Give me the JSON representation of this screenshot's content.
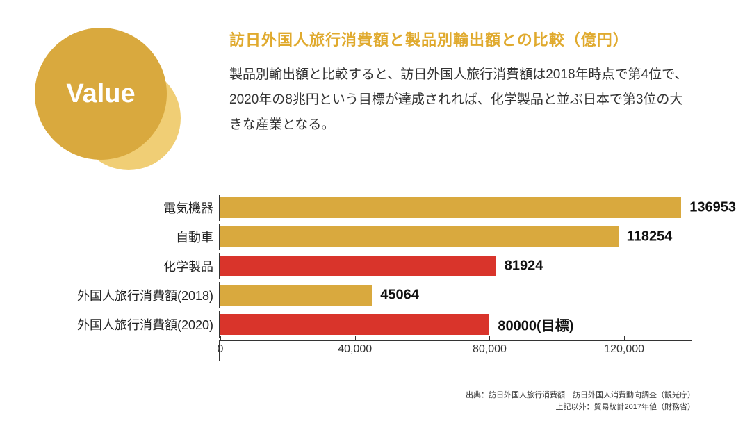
{
  "badge": {
    "label": "Value",
    "front_color": "#d9a93e",
    "back_color": "#f0ce75"
  },
  "title": {
    "text": "訪日外国人旅行消費額と製品別輸出額との比較（億円）",
    "color": "#e0aa2e"
  },
  "description": "製品別輸出額と比較すると、訪日外国人旅行消費額は2018年時点で第4位で、2020年の8兆円という目標が達成されれば、化学製品と並ぶ日本で第3位の大きな産業となる。",
  "chart": {
    "type": "bar-horizontal",
    "xmax": 140000,
    "ticks": [
      {
        "value": 0,
        "label": "0"
      },
      {
        "value": 40000,
        "label": "40,000"
      },
      {
        "value": 80000,
        "label": "80,000"
      },
      {
        "value": 120000,
        "label": "120,000"
      }
    ],
    "colors": {
      "gold": "#d9a93e",
      "red": "#d9342b"
    },
    "rows": [
      {
        "label": "電気機器",
        "value": 136953,
        "display": "136953",
        "color": "gold"
      },
      {
        "label": "自動車",
        "value": 118254,
        "display": "118254",
        "color": "gold"
      },
      {
        "label": "化学製品",
        "value": 81924,
        "display": "81924",
        "color": "red"
      },
      {
        "label": "外国人旅行消費額(2018)",
        "value": 45064,
        "display": "45064",
        "color": "gold"
      },
      {
        "label": "外国人旅行消費額(2020)",
        "value": 80000,
        "display": "80000(目標)",
        "color": "red"
      }
    ]
  },
  "sources": {
    "line1": "出典：訪日外国人旅行消費額　訪日外国人消費動向調査（観光庁）",
    "line2": "上記以外：貿易統計2017年値（財務省）"
  }
}
